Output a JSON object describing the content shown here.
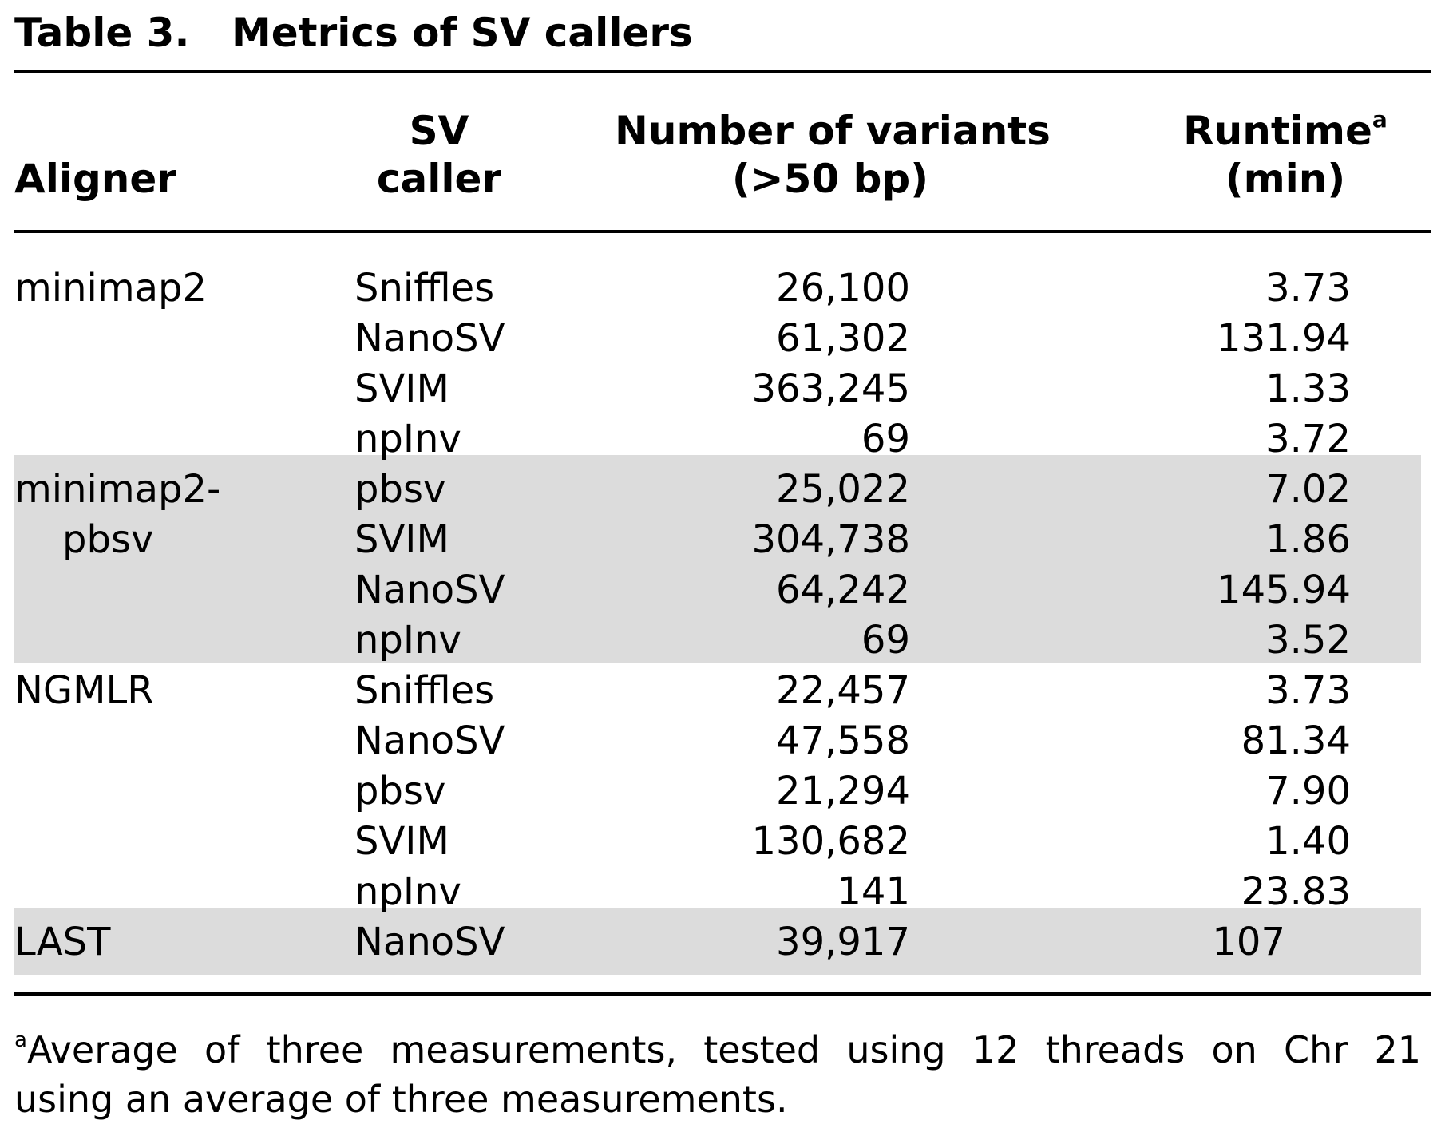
{
  "table": {
    "label": "Table 3.",
    "title": "Metrics of SV callers",
    "headers": {
      "aligner": "Aligner",
      "sv_caller_line1": "SV",
      "sv_caller_line2": "caller",
      "variants_line1": "Number of variants",
      "variants_line2": "(>50 bp)",
      "runtime_line1": "Runtime",
      "runtime_sup": "a",
      "runtime_line2": "(min)"
    },
    "rows": [
      {
        "aligner": "minimap2",
        "caller": "Sniffles",
        "variants": "26,100",
        "runtime": "3.73"
      },
      {
        "aligner": "",
        "caller": "NanoSV",
        "variants": "61,302",
        "runtime": "131.94"
      },
      {
        "aligner": "",
        "caller": "SVIM",
        "variants": "363,245",
        "runtime": "1.33"
      },
      {
        "aligner": "",
        "caller": "npInv",
        "variants": "69",
        "runtime": "3.72"
      },
      {
        "aligner": "minimap2-",
        "caller": "pbsv",
        "variants": "25,022",
        "runtime": "7.02"
      },
      {
        "aligner": "pbsv",
        "caller": "SVIM",
        "variants": "304,738",
        "runtime": "1.86"
      },
      {
        "aligner": "",
        "caller": "NanoSV",
        "variants": "64,242",
        "runtime": "145.94"
      },
      {
        "aligner": "",
        "caller": "npInv",
        "variants": "69",
        "runtime": "3.52"
      },
      {
        "aligner": "NGMLR",
        "caller": "Sniffles",
        "variants": "22,457",
        "runtime": "3.73"
      },
      {
        "aligner": "",
        "caller": "NanoSV",
        "variants": "47,558",
        "runtime": "81.34"
      },
      {
        "aligner": "",
        "caller": "pbsv",
        "variants": "21,294",
        "runtime": "7.90"
      },
      {
        "aligner": "",
        "caller": "SVIM",
        "variants": "130,682",
        "runtime": "1.40"
      },
      {
        "aligner": "",
        "caller": "npInv",
        "variants": "141",
        "runtime": "23.83"
      },
      {
        "aligner": "LAST",
        "caller": "NanoSV",
        "variants": "39,917",
        "runtime": "107"
      }
    ],
    "footnote": {
      "marker": "a",
      "line1": "Average of three measurements, tested using 12 threads on Chr 21",
      "line2": "using an average of three measurements."
    }
  },
  "colors": {
    "shaded_band": "#dcdcdc",
    "text": "#000000"
  }
}
